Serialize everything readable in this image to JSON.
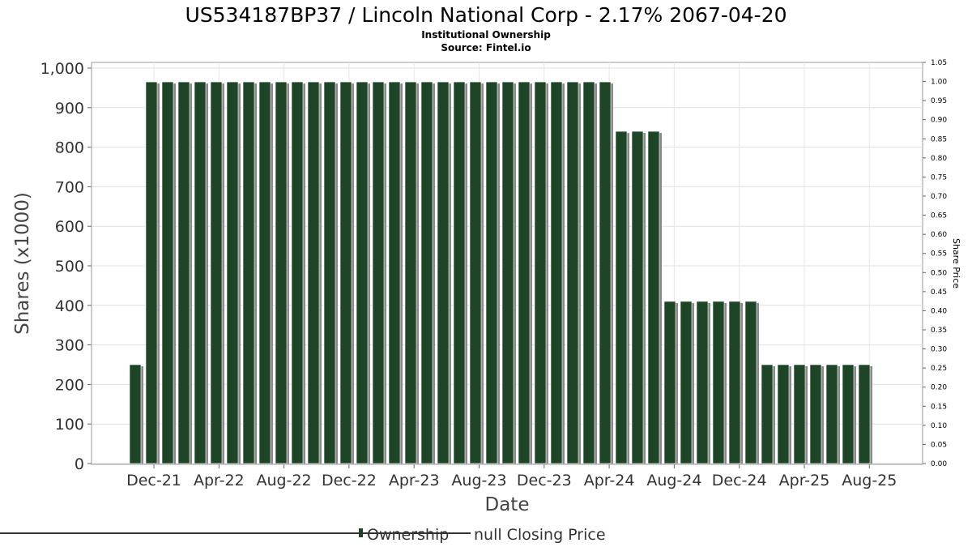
{
  "chart_data": {
    "type": "bar",
    "title": "US534187BP37 / Lincoln National Corp - 2.17% 2067-04-20",
    "subtitle": "Institutional Ownership",
    "source": "Source: Fintel.io",
    "xlabel": "Date",
    "ylabel": "Shares (x1000)",
    "y2label": "Share Price",
    "ylim": [
      0,
      1000
    ],
    "y2lim": [
      0,
      1.05
    ],
    "yticks": [
      "0",
      "100",
      "200",
      "300",
      "400",
      "500",
      "600",
      "700",
      "800",
      "900",
      "1,000"
    ],
    "y2ticks": [
      "0.00",
      "0.05",
      "0.10",
      "0.15",
      "0.20",
      "0.25",
      "0.30",
      "0.35",
      "0.40",
      "0.45",
      "0.50",
      "0.55",
      "0.60",
      "0.65",
      "0.70",
      "0.75",
      "0.80",
      "0.85",
      "0.90",
      "0.95",
      "1.00",
      "1.05"
    ],
    "xticks": [
      "Dec-21",
      "Apr-22",
      "Aug-22",
      "Dec-22",
      "Apr-23",
      "Aug-23",
      "Dec-23",
      "Apr-24",
      "Aug-24",
      "Dec-24",
      "Apr-25",
      "Aug-25"
    ],
    "grid": true,
    "legend_placement": "bottom",
    "series": [
      {
        "name": "Ownership",
        "color": "#1e4527",
        "values": [
          250,
          965,
          965,
          965,
          965,
          965,
          965,
          965,
          965,
          965,
          965,
          965,
          965,
          965,
          965,
          965,
          965,
          965,
          965,
          965,
          965,
          965,
          965,
          965,
          965,
          965,
          965,
          965,
          965,
          965,
          840,
          840,
          840,
          410,
          410,
          410,
          410,
          410,
          410,
          250,
          250,
          250,
          250,
          250,
          250,
          250
        ]
      },
      {
        "name": "null Closing Price",
        "color": "#333333",
        "values": []
      }
    ]
  }
}
